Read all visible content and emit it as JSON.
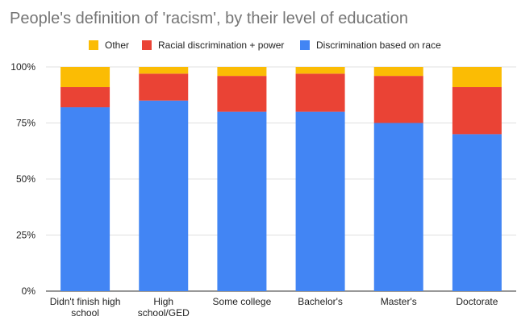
{
  "chart_data": {
    "type": "bar",
    "stacked": true,
    "title": "People's definition of 'racism', by their level of education",
    "xlabel": "",
    "ylabel": "",
    "ylim": [
      0,
      100
    ],
    "y_ticks": [
      "0%",
      "25%",
      "50%",
      "75%",
      "100%"
    ],
    "y_tick_values": [
      0,
      25,
      50,
      75,
      100
    ],
    "grid": true,
    "legend_position": "top",
    "categories": [
      [
        "Didn't finish high",
        "school"
      ],
      [
        "High",
        "school/GED"
      ],
      [
        "Some college"
      ],
      [
        "Bachelor's"
      ],
      [
        "Master's"
      ],
      [
        "Doctorate"
      ]
    ],
    "series": [
      {
        "name": "Discrimination based on race",
        "color": "#4285f4",
        "values": [
          82,
          85,
          80,
          80,
          75,
          70
        ]
      },
      {
        "name": "Racial discrimination + power",
        "color": "#ea4335",
        "values": [
          9,
          12,
          16,
          17,
          21,
          21
        ]
      },
      {
        "name": "Other",
        "color": "#fbbc04",
        "values": [
          9,
          3,
          4,
          3,
          4,
          9
        ]
      }
    ],
    "legend_order": [
      "Other",
      "Racial discrimination + power",
      "Discrimination based on race"
    ]
  }
}
